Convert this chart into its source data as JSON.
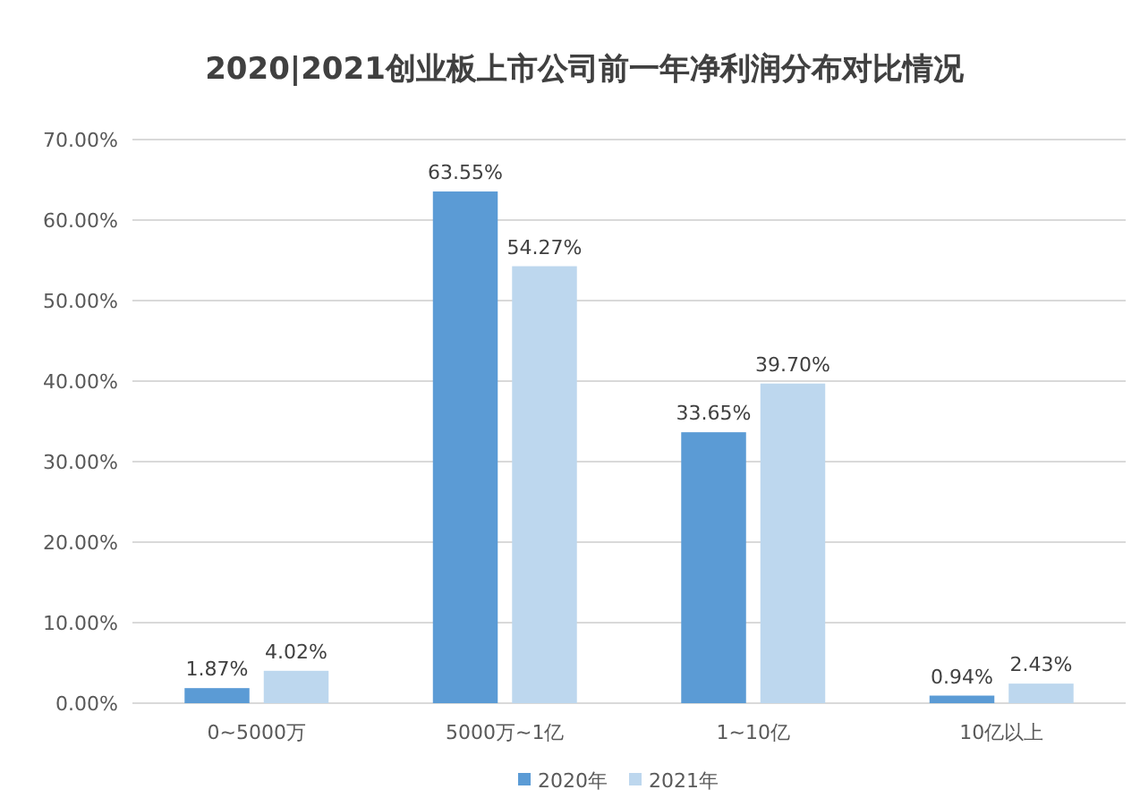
{
  "chart_data": {
    "type": "bar",
    "title": "2020|2021创业板上市公司前一年净利润分布对比情况",
    "categories": [
      "0~5000万",
      "5000万~1亿",
      "1~10亿",
      "10亿以上"
    ],
    "series": [
      {
        "name": "2020年",
        "color": "#5b9bd5",
        "values": [
          1.87,
          63.55,
          33.65,
          0.94
        ],
        "value_labels": [
          "1.87%",
          "63.55%",
          "33.65%",
          "0.94%"
        ]
      },
      {
        "name": "2021年",
        "color": "#bdd7ee",
        "values": [
          4.02,
          54.27,
          39.7,
          2.43
        ],
        "value_labels": [
          "4.02%",
          "54.27%",
          "39.70%",
          "2.43%"
        ]
      }
    ],
    "ylim": [
      0,
      70
    ],
    "yticks": [
      {
        "value": 0,
        "label": "0.00%"
      },
      {
        "value": 10,
        "label": "10.00%"
      },
      {
        "value": 20,
        "label": "20.00%"
      },
      {
        "value": 30,
        "label": "30.00%"
      },
      {
        "value": 40,
        "label": "40.00%"
      },
      {
        "value": 50,
        "label": "50.00%"
      },
      {
        "value": 60,
        "label": "60.00%"
      },
      {
        "value": 70,
        "label": "70.00%"
      }
    ],
    "grid": "y",
    "legend": "bottom"
  }
}
